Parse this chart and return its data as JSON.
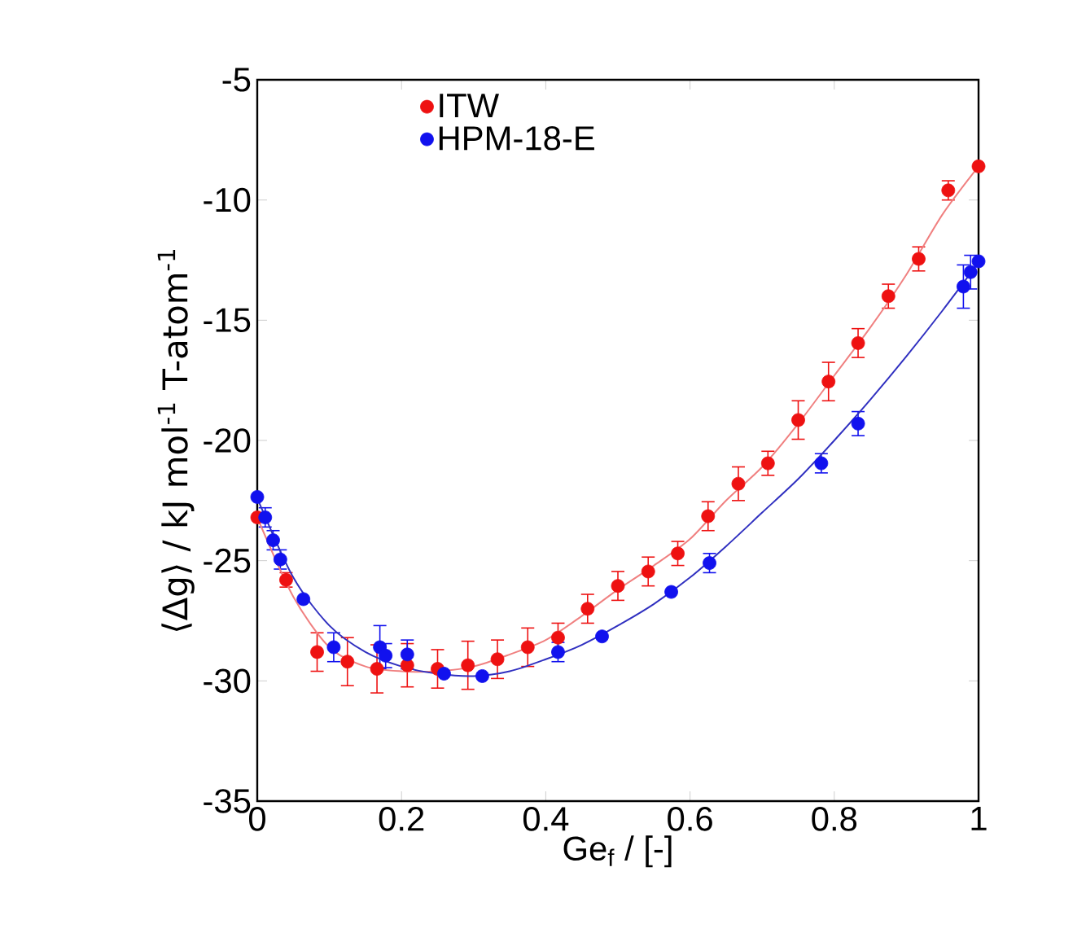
{
  "chart_data": {
    "type": "scatter",
    "xlabel": "Ge$_{f}$ / [-]",
    "ylabel": "⟨Δg⟩ / kJ mol$^{-1}$ T-atom$^{-1}$",
    "xlim": [
      0,
      1
    ],
    "ylim": [
      -35,
      -5
    ],
    "xticks": [
      0,
      0.2,
      0.4,
      0.6,
      0.8,
      1
    ],
    "yticks": [
      -35,
      -30,
      -25,
      -20,
      -15,
      -10,
      -5
    ],
    "grid": false,
    "legend": "top",
    "series": [
      {
        "name": "ITW",
        "color": "#ee1111",
        "marker": "circle",
        "x": [
          0,
          0.04,
          0.083,
          0.125,
          0.166,
          0.208,
          0.25,
          0.292,
          0.333,
          0.375,
          0.417,
          0.458,
          0.5,
          0.542,
          0.583,
          0.625,
          0.667,
          0.708,
          0.75,
          0.792,
          0.833,
          0.875,
          0.917,
          0.958,
          1.0
        ],
        "values": [
          -23.2,
          -25.8,
          -28.8,
          -29.2,
          -29.5,
          -29.35,
          -29.5,
          -29.35,
          -29.1,
          -28.6,
          -28.2,
          -27.0,
          -26.05,
          -25.45,
          -24.7,
          -23.15,
          -21.8,
          -20.95,
          -19.15,
          -17.55,
          -15.95,
          -14.0,
          -12.45,
          -9.6,
          -8.6
        ],
        "errors": [
          null,
          0.3,
          0.8,
          1.0,
          1.0,
          0.9,
          0.8,
          1.0,
          0.8,
          0.8,
          0.6,
          0.6,
          0.6,
          0.6,
          0.5,
          0.6,
          0.7,
          0.5,
          0.8,
          0.8,
          0.6,
          0.5,
          0.5,
          0.4,
          null
        ]
      },
      {
        "name": "HPM-18-E",
        "color": "#1111ee",
        "marker": "circle",
        "x": [
          0,
          0.011,
          0.022,
          0.032,
          0.064,
          0.106,
          0.17,
          0.178,
          0.208,
          0.259,
          0.312,
          0.417,
          0.478,
          0.574,
          0.627,
          0.782,
          0.833,
          0.979,
          0.989,
          1.0
        ],
        "values": [
          -22.35,
          -23.2,
          -24.15,
          -24.95,
          -26.6,
          -28.6,
          -28.6,
          -28.95,
          -28.9,
          -29.7,
          -29.8,
          -28.8,
          -28.15,
          -26.3,
          -25.1,
          -20.95,
          -19.3,
          -13.6,
          -13.0,
          -12.55
        ],
        "errors": [
          null,
          0.4,
          0.4,
          0.4,
          null,
          0.6,
          0.9,
          0.5,
          0.6,
          null,
          null,
          0.4,
          null,
          null,
          0.4,
          0.4,
          0.5,
          0.9,
          0.7,
          null
        ]
      },
      {
        "type": "line",
        "marker": "none",
        "color": "#f08080",
        "x": [
          0,
          0.05,
          0.1,
          0.15,
          0.2,
          0.25,
          0.3,
          0.35,
          0.4,
          0.45,
          0.5,
          0.55,
          0.6,
          0.65,
          0.7,
          0.75,
          0.8,
          0.85,
          0.9,
          0.95,
          1.0
        ],
        "values": [
          -23.2,
          -26.5,
          -28.6,
          -29.4,
          -29.6,
          -29.6,
          -29.4,
          -28.9,
          -28.3,
          -27.3,
          -26.2,
          -25.2,
          -24.1,
          -22.5,
          -21.1,
          -19.3,
          -17.3,
          -15.3,
          -13.1,
          -10.6,
          -8.6
        ]
      },
      {
        "type": "line",
        "marker": "none",
        "color": "#3030c0",
        "x": [
          0,
          0.05,
          0.1,
          0.15,
          0.2,
          0.25,
          0.3,
          0.35,
          0.4,
          0.45,
          0.5,
          0.55,
          0.6,
          0.65,
          0.7,
          0.75,
          0.8,
          0.85,
          0.9,
          0.95,
          1.0
        ],
        "values": [
          -22.4,
          -25.7,
          -27.7,
          -28.8,
          -29.4,
          -29.7,
          -29.8,
          -29.6,
          -29.1,
          -28.5,
          -27.7,
          -26.8,
          -25.7,
          -24.4,
          -23.0,
          -21.6,
          -20.0,
          -18.3,
          -16.5,
          -14.6,
          -12.6
        ]
      }
    ]
  }
}
